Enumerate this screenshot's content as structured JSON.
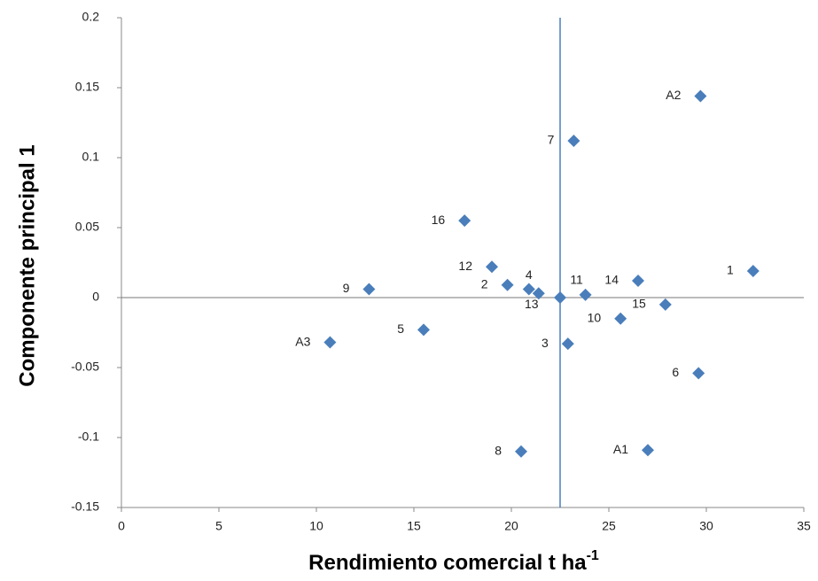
{
  "chart_data": {
    "type": "scatter",
    "x_label": "Rendimiento comercial t ha",
    "x_label_superscript": "-1",
    "y_label": "Componente principal 1",
    "x": [
      29.7,
      23.2,
      17.6,
      19.0,
      32.4,
      12.7,
      19.8,
      20.9,
      21.4,
      22.5,
      23.8,
      26.5,
      27.9,
      25.6,
      22.9,
      15.5,
      10.7,
      29.6,
      20.5,
      27.0
    ],
    "values": [
      0.144,
      0.112,
      0.055,
      0.022,
      0.019,
      0.006,
      0.009,
      0.006,
      0.003,
      0,
      0.002,
      0.012,
      -0.005,
      -0.015,
      -0.033,
      -0.023,
      -0.032,
      -0.054,
      -0.11,
      -0.109
    ],
    "point_labels": [
      "A2",
      "7",
      "16",
      "12",
      "1",
      "9",
      "2",
      "4",
      "13",
      null,
      "11",
      "14",
      "15",
      "10",
      "3",
      "5",
      "A3",
      "6",
      "8",
      "A1"
    ],
    "color": "#4a7ebb",
    "reference_lines": {
      "x": 22.5,
      "y": 0
    },
    "xlim": [
      0,
      35
    ],
    "xticks": [
      0,
      5,
      10,
      15,
      20,
      25,
      30,
      35
    ],
    "ylim": [
      -0.15,
      0.2
    ],
    "yticks": [
      -0.15,
      -0.1,
      -0.05,
      0,
      0.05,
      0.1,
      0.15,
      0.2
    ]
  }
}
